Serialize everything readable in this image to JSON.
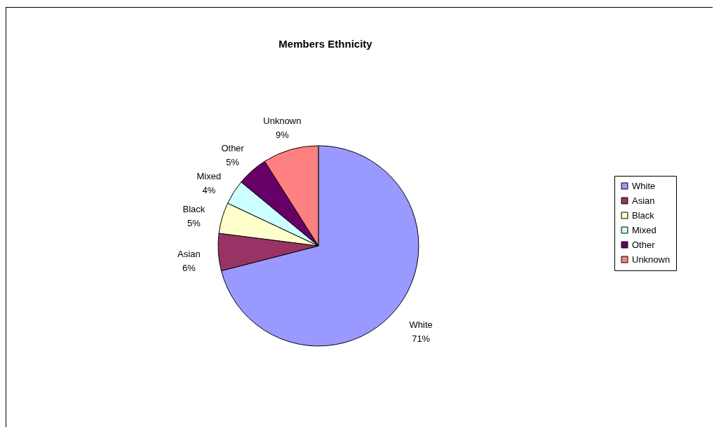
{
  "chart_data": {
    "type": "pie",
    "title": "Members Ethnicity",
    "categories": [
      "White",
      "Asian",
      "Black",
      "Mixed",
      "Other",
      "Unknown"
    ],
    "values": [
      71,
      6,
      5,
      4,
      5,
      9
    ],
    "value_labels": [
      "71%",
      "6%",
      "5%",
      "4%",
      "5%",
      "9%"
    ],
    "colors": [
      "#9999ff",
      "#993366",
      "#ffffcc",
      "#ccffff",
      "#660066",
      "#ff8080"
    ],
    "legend": "right"
  }
}
